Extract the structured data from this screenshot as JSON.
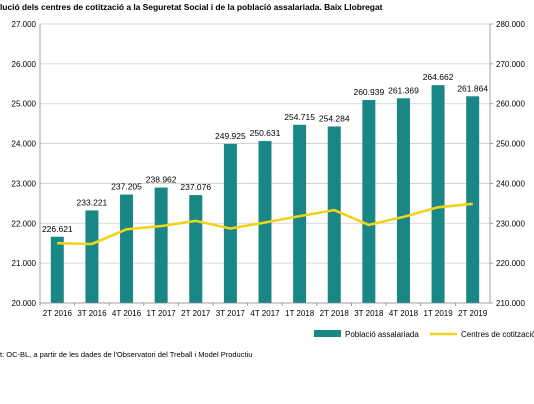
{
  "header": {
    "title": "lució dels centres de cotització a la Seguretat Social i de la població assalariada. Baix Llobregat"
  },
  "footer": {
    "source": "t: OC-BL, a partir de les dades de l'Observatori del Treball i Model Productiu"
  },
  "colors": {
    "bar": "#1a8787",
    "line": "#f2d31b",
    "grid": "#cfcfcf",
    "axis": "#8c8c8c"
  },
  "chart_data": {
    "type": "bar",
    "title": "lució dels centres de cotització a la Seguretat Social i de la població assalariada. Baix Llobregat",
    "categories": [
      "2T 2016",
      "3T 2016",
      "4T 2016",
      "1T 2017",
      "2T 2017",
      "3T 2017",
      "4T 2017",
      "1T 2018",
      "2T 2018",
      "3T 2018",
      "4T 2018",
      "1T 2019",
      "2T 2019"
    ],
    "y_left": {
      "lim": [
        20000,
        27000
      ],
      "ticks": [
        "20.000",
        "21.000",
        "22.000",
        "23.000",
        "24.000",
        "25.000",
        "26.000",
        "27.000"
      ]
    },
    "y_right": {
      "lim": [
        210000,
        280000
      ],
      "ticks": [
        "210.000",
        "220.000",
        "230.000",
        "240.000",
        "250.000",
        "260.000",
        "270.000",
        "280.000"
      ]
    },
    "grid": true,
    "legend_position": "bottom-right",
    "series": [
      {
        "name": "Població assalariada",
        "type": "bar",
        "axis": "right",
        "values": [
          226621,
          233221,
          237205,
          238962,
          237076,
          249925,
          250631,
          254715,
          254284,
          260939,
          261369,
          264662,
          261864
        ],
        "labels": [
          "226.621",
          "233.221",
          "237.205",
          "238.962",
          "237.076",
          "249.925",
          "250.631",
          "254.715",
          "254.284",
          "260.939",
          "261.369",
          "264.662",
          "261.864"
        ]
      },
      {
        "name": "Centres de cotització",
        "type": "line",
        "axis": "left",
        "values": [
          21500,
          21480,
          21850,
          21930,
          22060,
          21870,
          22020,
          22180,
          22330,
          21960,
          22160,
          22400,
          22490
        ]
      }
    ]
  }
}
